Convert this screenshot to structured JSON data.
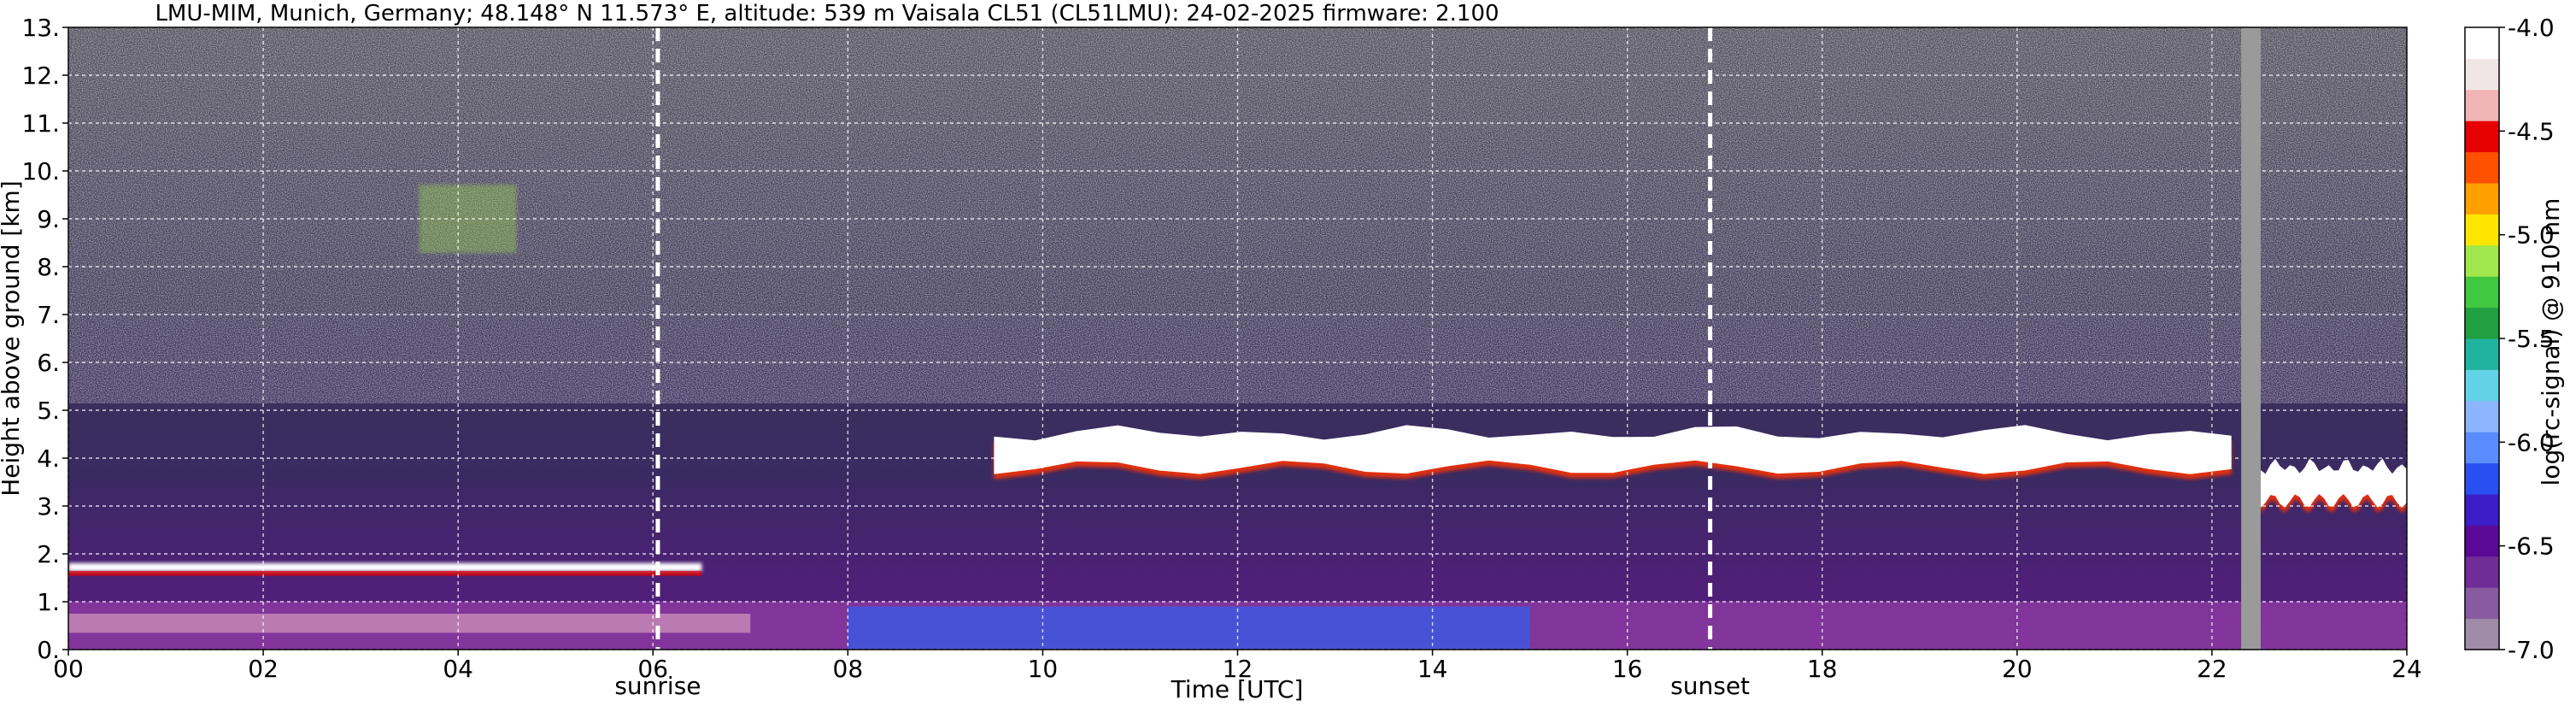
{
  "chart_data": {
    "type": "heatmap",
    "title": "LMU-MIM, Munich, Germany; 48.148° N 11.573° E, altitude: 539 m    Vaisala CL51 (CL51LMU): 24-02-2025    firmware: 2.100",
    "xlabel": "Time [UTC]",
    "ylabel": "Height above ground [km]",
    "xlim": [
      0,
      24
    ],
    "ylim": [
      0,
      13
    ],
    "x_ticks": [
      0,
      2,
      4,
      6,
      8,
      10,
      12,
      14,
      16,
      18,
      20,
      22,
      24
    ],
    "x_tick_labels": [
      "00",
      "02",
      "04",
      "06",
      "08",
      "10",
      "12",
      "14",
      "16",
      "18",
      "20",
      "22",
      "24"
    ],
    "y_ticks": [
      0,
      1,
      2,
      3,
      4,
      5,
      6,
      7,
      8,
      9,
      10,
      11,
      12,
      13
    ],
    "y_tick_labels": [
      "0.",
      "1.",
      "2.",
      "3.",
      "4.",
      "5.",
      "6.",
      "7.",
      "8.",
      "9.",
      "10.",
      "11.",
      "12.",
      "13."
    ],
    "grid": true,
    "markers": [
      {
        "label": "sunrise",
        "time": 6.05
      },
      {
        "label": "sunset",
        "time": 16.85
      }
    ],
    "missing_data": {
      "from": 22.3,
      "to": 22.5
    },
    "colorbar": {
      "label": "log(rc-signal) @ 910 nm",
      "min": -7.0,
      "max": -4.0,
      "ticks": [
        -4.0,
        -4.5,
        -5.0,
        -5.5,
        -6.0,
        -6.5,
        -7.0
      ],
      "tick_labels": [
        "-4.0",
        "-4.5",
        "-5.0",
        "-5.5",
        "-6.0",
        "-6.5",
        "-7.0"
      ],
      "colors": [
        {
          "value": -7.0,
          "color": "#a08ca8"
        },
        {
          "value": -6.85,
          "color": "#8a5aa0"
        },
        {
          "value": -6.7,
          "color": "#702d98"
        },
        {
          "value": -6.55,
          "color": "#5a0a96"
        },
        {
          "value": -6.4,
          "color": "#3c1ec8"
        },
        {
          "value": -6.25,
          "color": "#2850f0"
        },
        {
          "value": -6.1,
          "color": "#5a8cff"
        },
        {
          "value": -5.95,
          "color": "#8cb4ff"
        },
        {
          "value": -5.8,
          "color": "#64d2e6"
        },
        {
          "value": -5.65,
          "color": "#20b4a0"
        },
        {
          "value": -5.5,
          "color": "#20a040"
        },
        {
          "value": -5.35,
          "color": "#40c840"
        },
        {
          "value": -5.2,
          "color": "#a0e64c"
        },
        {
          "value": -5.05,
          "color": "#ffe600"
        },
        {
          "value": -4.9,
          "color": "#ffa000"
        },
        {
          "value": -4.75,
          "color": "#ff5000"
        },
        {
          "value": -4.6,
          "color": "#e60000"
        },
        {
          "value": -4.45,
          "color": "#f0b4b4"
        },
        {
          "value": -4.3,
          "color": "#f0e6e6"
        },
        {
          "value": -4.15,
          "color": "#ffffff"
        }
      ]
    },
    "features": [
      {
        "kind": "boundary_layer",
        "from": 0,
        "to": 24,
        "base_km": 0,
        "top_km": 1.0
      },
      {
        "kind": "low_cloud",
        "from": 0,
        "to": 6.5,
        "height_km": 1.7
      },
      {
        "kind": "cloud_layer",
        "from": 9.5,
        "to": 22.2,
        "height_km": 4.2
      },
      {
        "kind": "cloud_layer",
        "from": 22.5,
        "to": 24,
        "height_km": 3.5
      },
      {
        "kind": "cirrus",
        "from": 3.6,
        "to": 4.6,
        "height_km": 9.0
      }
    ]
  }
}
